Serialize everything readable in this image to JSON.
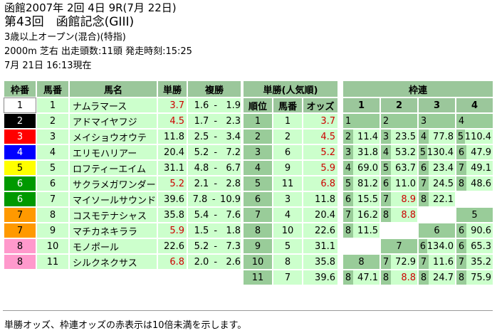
{
  "header": {
    "line1": "函館2007年 2回 4日 9R(7月 22日)",
    "line2": "第43回　函館記念(GIII)",
    "line3": "3歳以上オープン(混合)(特指)",
    "line4": "2000m 芝右 出走頭数:11頭 発走時刻:15:25",
    "line5": "7月 21日 16:13現在"
  },
  "colors": {
    "green": "#99cc99",
    "light_green": "#ccffcc",
    "red_text": "#cc0000"
  },
  "horses": {
    "headers": {
      "waku": "枠番",
      "uma": "馬番",
      "name": "馬名",
      "win": "単勝",
      "place": "複勝"
    },
    "rows": [
      {
        "waku": "1",
        "uma": "1",
        "name": "ナムラマース",
        "win": "3.7",
        "place_low": "1.6",
        "place_high": "1.9",
        "waku_bg": "#ffffff",
        "waku_fg": "#000000",
        "red": true
      },
      {
        "waku": "2",
        "uma": "2",
        "name": "アドマイヤフジ",
        "win": "4.5",
        "place_low": "1.7",
        "place_high": "2.3",
        "waku_bg": "#000000",
        "waku_fg": "#ffffff",
        "red": true
      },
      {
        "waku": "3",
        "uma": "3",
        "name": "メイショウオウテ",
        "win": "11.8",
        "place_low": "2.5",
        "place_high": "3.4",
        "waku_bg": "#ff0000",
        "waku_fg": "#ffffff",
        "red": false
      },
      {
        "waku": "4",
        "uma": "4",
        "name": "エリモハリアー",
        "win": "20.4",
        "place_low": "5.2",
        "place_high": "7.2",
        "waku_bg": "#0000ff",
        "waku_fg": "#ffffff",
        "red": false
      },
      {
        "waku": "5",
        "uma": "5",
        "name": "ロフティーエイム",
        "win": "31.1",
        "place_low": "4.8",
        "place_high": "6.7",
        "waku_bg": "#ffff00",
        "waku_fg": "#000000",
        "red": false
      },
      {
        "waku": "6",
        "uma": "6",
        "name": "サクラメガワンダー",
        "win": "5.2",
        "place_low": "2.1",
        "place_high": "2.8",
        "waku_bg": "#009900",
        "waku_fg": "#ffffff",
        "red": true
      },
      {
        "waku": "6",
        "uma": "7",
        "name": "マイソールサウンド",
        "win": "39.6",
        "place_low": "7.8",
        "place_high": "10.9",
        "waku_bg": "#009900",
        "waku_fg": "#ffffff",
        "red": false
      },
      {
        "waku": "7",
        "uma": "8",
        "name": "コスモテナシャス",
        "win": "35.8",
        "place_low": "5.4",
        "place_high": "7.6",
        "waku_bg": "#ff9900",
        "waku_fg": "#000000",
        "red": false
      },
      {
        "waku": "7",
        "uma": "9",
        "name": "マチカネキララ",
        "win": "5.9",
        "place_low": "1.5",
        "place_high": "1.8",
        "waku_bg": "#ff9900",
        "waku_fg": "#000000",
        "red": true
      },
      {
        "waku": "8",
        "uma": "10",
        "name": "モノポール",
        "win": "22.6",
        "place_low": "5.2",
        "place_high": "7.3",
        "waku_bg": "#ff99cc",
        "waku_fg": "#000000",
        "red": false
      },
      {
        "waku": "8",
        "uma": "11",
        "name": "シルクネクサス",
        "win": "6.8",
        "place_low": "2.0",
        "place_high": "2.6",
        "waku_bg": "#ff99cc",
        "waku_fg": "#000000",
        "red": true
      }
    ]
  },
  "popularity": {
    "title": "単勝(人気順)",
    "headers": {
      "rank": "順位",
      "uma": "馬番",
      "odds": "オッズ"
    },
    "rows": [
      {
        "rank": "1",
        "uma": "1",
        "odds": "3.7",
        "red": true
      },
      {
        "rank": "2",
        "uma": "2",
        "odds": "4.5",
        "red": true
      },
      {
        "rank": "3",
        "uma": "6",
        "odds": "5.2",
        "red": true
      },
      {
        "rank": "4",
        "uma": "9",
        "odds": "5.9",
        "red": true
      },
      {
        "rank": "5",
        "uma": "11",
        "odds": "6.8",
        "red": true
      },
      {
        "rank": "6",
        "uma": "3",
        "odds": "11.8",
        "red": false
      },
      {
        "rank": "7",
        "uma": "4",
        "odds": "20.4",
        "red": false
      },
      {
        "rank": "8",
        "uma": "10",
        "odds": "22.6",
        "red": false
      },
      {
        "rank": "9",
        "uma": "5",
        "odds": "31.1",
        "red": false
      },
      {
        "rank": "10",
        "uma": "8",
        "odds": "35.8",
        "red": false
      },
      {
        "rank": "11",
        "uma": "7",
        "odds": "39.6",
        "red": false
      }
    ]
  },
  "wakuren": {
    "title": "枠連",
    "columns": [
      "1",
      "2",
      "3",
      "4"
    ],
    "rows": [
      [
        {
          "k": "1"
        },
        {
          "k": "2"
        },
        {
          "k": "3"
        },
        {
          "k": "4"
        }
      ],
      [
        {
          "k": "2",
          "v": "11.4"
        },
        {
          "k": "3",
          "v": "23.5"
        },
        {
          "k": "4",
          "v": "77.8"
        },
        {
          "k": "5",
          "v": "110.4"
        }
      ],
      [
        {
          "k": "3",
          "v": "31.8"
        },
        {
          "k": "4",
          "v": "53.2"
        },
        {
          "k": "5",
          "v": "130.4"
        },
        {
          "k": "6",
          "v": "47.9"
        }
      ],
      [
        {
          "k": "4",
          "v": "69.0"
        },
        {
          "k": "5",
          "v": "63.7"
        },
        {
          "k": "6",
          "v": "23.4"
        },
        {
          "k": "7",
          "v": "49.1"
        }
      ],
      [
        {
          "k": "5",
          "v": "81.2"
        },
        {
          "k": "6",
          "v": "11.0"
        },
        {
          "k": "7",
          "v": "24.5"
        },
        {
          "k": "8",
          "v": "48.6"
        }
      ],
      [
        {
          "k": "6",
          "v": "15.5"
        },
        {
          "k": "7",
          "v": "8.9",
          "red": true
        },
        {
          "k": "8",
          "v": "22.1"
        },
        {
          "blank": true
        }
      ],
      [
        {
          "k": "7",
          "v": "16.2"
        },
        {
          "k": "8",
          "v": "8.8",
          "red": true
        },
        {
          "blank": true
        },
        {
          "full": "5"
        }
      ],
      [
        {
          "k": "8",
          "v": "11.5"
        },
        {
          "blank": true
        },
        {
          "full": "6"
        },
        {
          "k": "6",
          "v": "90.6"
        }
      ],
      [
        {
          "blank": true
        },
        {
          "full": "7"
        },
        {
          "k": "6",
          "v": "134.0"
        },
        {
          "k": "6",
          "v": "65.3"
        }
      ],
      [
        {
          "full": "8"
        },
        {
          "k": "7",
          "v": "72.9"
        },
        {
          "k": "7",
          "v": "11.6"
        },
        {
          "k": "7",
          "v": "35.2"
        }
      ],
      [
        {
          "k": "8",
          "v": "47.1"
        },
        {
          "k": "8",
          "v": "8.8",
          "red": true
        },
        {
          "k": "8",
          "v": "24.7"
        },
        {
          "k": "8",
          "v": "75.9"
        }
      ]
    ]
  },
  "note": "単勝オッズ、枠連オッズの赤表示は10倍未満を示します。"
}
